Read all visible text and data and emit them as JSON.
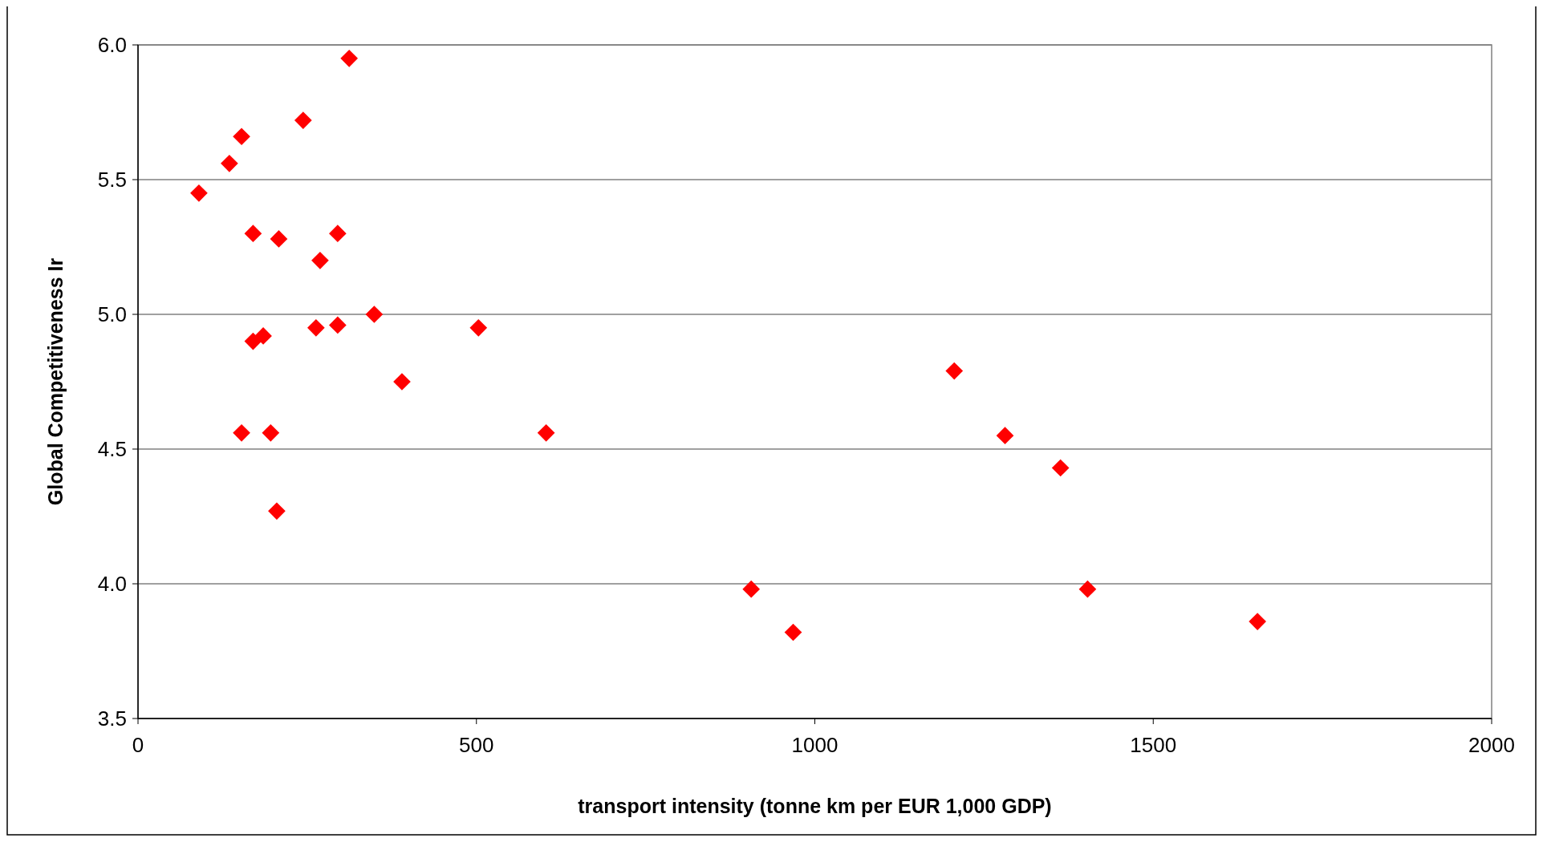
{
  "chart_data": {
    "type": "scatter",
    "xlabel": "transport intensity (tonne km per EUR 1,000 GDP)",
    "ylabel": "Global Competitiveness Ir",
    "x": [
      90,
      135,
      153,
      170,
      170,
      185,
      153,
      196,
      205,
      208,
      244,
      269,
      263,
      295,
      295,
      312,
      349,
      390,
      503,
      603,
      906,
      968,
      1206,
      1281,
      1363,
      1403,
      1654
    ],
    "series": [
      {
        "color": "#ff0000",
        "values": [
          5.45,
          5.56,
          5.66,
          5.3,
          4.9,
          4.92,
          4.56,
          4.56,
          4.27,
          5.28,
          5.72,
          5.2,
          4.95,
          5.3,
          4.96,
          5.95,
          5.0,
          4.75,
          4.95,
          4.56,
          3.98,
          3.82,
          4.79,
          4.55,
          4.43,
          3.98,
          3.86
        ]
      }
    ],
    "xlim": [
      0,
      2000
    ],
    "xticks": [
      0,
      500,
      1000,
      1500,
      2000
    ],
    "ylim": [
      3.5,
      6.0
    ],
    "yticks": [
      {
        "value": 3.5,
        "label": "3.5"
      },
      {
        "value": 4.0,
        "label": "4.0"
      },
      {
        "value": 4.5,
        "label": "4.5"
      },
      {
        "value": 5.0,
        "label": "5.0"
      },
      {
        "value": 5.5,
        "label": "5.5"
      },
      {
        "value": 6.0,
        "label": "6.0"
      }
    ],
    "grid": "y",
    "marker": "diamond"
  }
}
